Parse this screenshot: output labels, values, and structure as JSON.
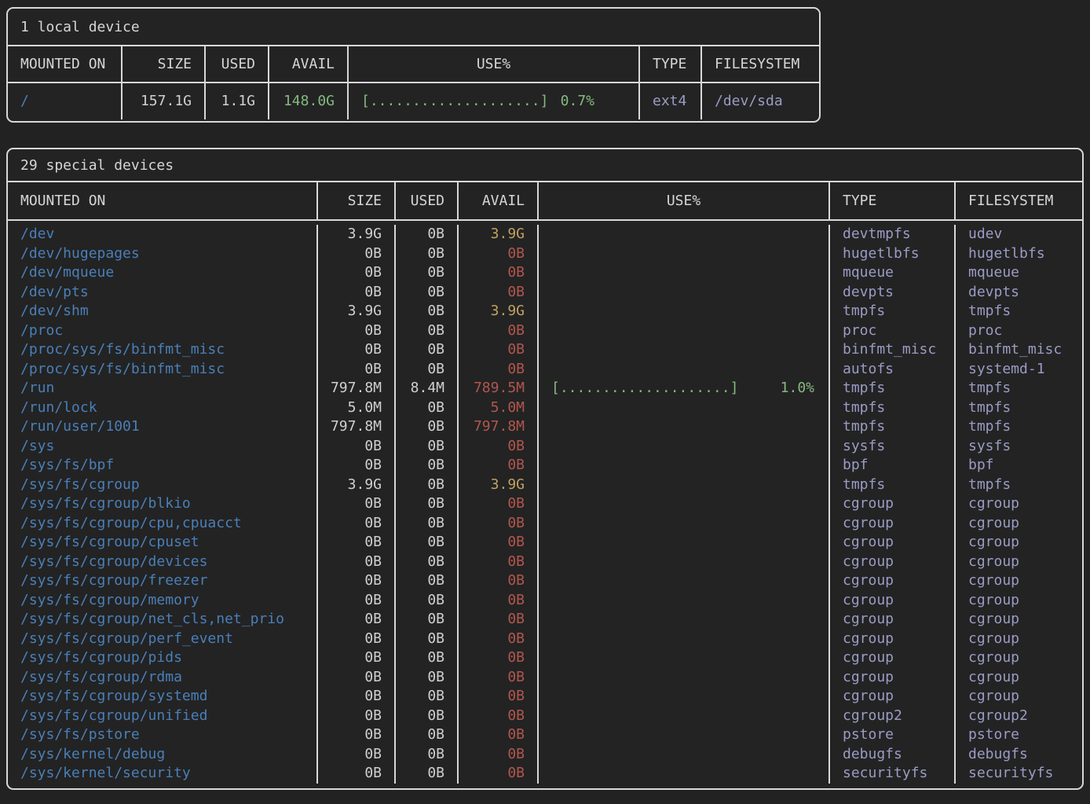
{
  "colors": {
    "background": "#222222",
    "border": "#d8d8d8",
    "mount_blue": "#4a7fb8",
    "value_white": "#d0d0d0",
    "avail_green": "#85b97f",
    "avail_yellow": "#c2a163",
    "avail_red": "#b2564e",
    "usage_green": "#85b97f",
    "fs_lavender": "#9b9bc5"
  },
  "local": {
    "title": "1 local device",
    "columns": [
      "MOUNTED ON",
      "SIZE",
      "USED",
      "AVAIL",
      "USE%",
      "TYPE",
      "FILESYSTEM"
    ],
    "rows": [
      {
        "mounted_on": "/",
        "size": "157.1G",
        "used": "1.1G",
        "avail": "148.0G",
        "avail_level": "green",
        "use_bar": "[....................]",
        "use_pct": "0.7%",
        "type": "ext4",
        "filesystem": "/dev/sda"
      }
    ]
  },
  "special": {
    "title": "29 special devices",
    "columns": [
      "MOUNTED ON",
      "SIZE",
      "USED",
      "AVAIL",
      "USE%",
      "TYPE",
      "FILESYSTEM"
    ],
    "rows": [
      {
        "mounted_on": "/dev",
        "size": "3.9G",
        "used": "0B",
        "avail": "3.9G",
        "avail_level": "yellow",
        "use_bar": null,
        "use_pct": null,
        "type": "devtmpfs",
        "filesystem": "udev"
      },
      {
        "mounted_on": "/dev/hugepages",
        "size": "0B",
        "used": "0B",
        "avail": "0B",
        "avail_level": "red",
        "use_bar": null,
        "use_pct": null,
        "type": "hugetlbfs",
        "filesystem": "hugetlbfs"
      },
      {
        "mounted_on": "/dev/mqueue",
        "size": "0B",
        "used": "0B",
        "avail": "0B",
        "avail_level": "red",
        "use_bar": null,
        "use_pct": null,
        "type": "mqueue",
        "filesystem": "mqueue"
      },
      {
        "mounted_on": "/dev/pts",
        "size": "0B",
        "used": "0B",
        "avail": "0B",
        "avail_level": "red",
        "use_bar": null,
        "use_pct": null,
        "type": "devpts",
        "filesystem": "devpts"
      },
      {
        "mounted_on": "/dev/shm",
        "size": "3.9G",
        "used": "0B",
        "avail": "3.9G",
        "avail_level": "yellow",
        "use_bar": null,
        "use_pct": null,
        "type": "tmpfs",
        "filesystem": "tmpfs"
      },
      {
        "mounted_on": "/proc",
        "size": "0B",
        "used": "0B",
        "avail": "0B",
        "avail_level": "red",
        "use_bar": null,
        "use_pct": null,
        "type": "proc",
        "filesystem": "proc"
      },
      {
        "mounted_on": "/proc/sys/fs/binfmt_misc",
        "size": "0B",
        "used": "0B",
        "avail": "0B",
        "avail_level": "red",
        "use_bar": null,
        "use_pct": null,
        "type": "binfmt_misc",
        "filesystem": "binfmt_misc"
      },
      {
        "mounted_on": "/proc/sys/fs/binfmt_misc",
        "size": "0B",
        "used": "0B",
        "avail": "0B",
        "avail_level": "red",
        "use_bar": null,
        "use_pct": null,
        "type": "autofs",
        "filesystem": "systemd-1"
      },
      {
        "mounted_on": "/run",
        "size": "797.8M",
        "used": "8.4M",
        "avail": "789.5M",
        "avail_level": "red",
        "use_bar": "[....................]",
        "use_pct": "1.0%",
        "type": "tmpfs",
        "filesystem": "tmpfs"
      },
      {
        "mounted_on": "/run/lock",
        "size": "5.0M",
        "used": "0B",
        "avail": "5.0M",
        "avail_level": "red",
        "use_bar": null,
        "use_pct": null,
        "type": "tmpfs",
        "filesystem": "tmpfs"
      },
      {
        "mounted_on": "/run/user/1001",
        "size": "797.8M",
        "used": "0B",
        "avail": "797.8M",
        "avail_level": "red",
        "use_bar": null,
        "use_pct": null,
        "type": "tmpfs",
        "filesystem": "tmpfs"
      },
      {
        "mounted_on": "/sys",
        "size": "0B",
        "used": "0B",
        "avail": "0B",
        "avail_level": "red",
        "use_bar": null,
        "use_pct": null,
        "type": "sysfs",
        "filesystem": "sysfs"
      },
      {
        "mounted_on": "/sys/fs/bpf",
        "size": "0B",
        "used": "0B",
        "avail": "0B",
        "avail_level": "red",
        "use_bar": null,
        "use_pct": null,
        "type": "bpf",
        "filesystem": "bpf"
      },
      {
        "mounted_on": "/sys/fs/cgroup",
        "size": "3.9G",
        "used": "0B",
        "avail": "3.9G",
        "avail_level": "yellow",
        "use_bar": null,
        "use_pct": null,
        "type": "tmpfs",
        "filesystem": "tmpfs"
      },
      {
        "mounted_on": "/sys/fs/cgroup/blkio",
        "size": "0B",
        "used": "0B",
        "avail": "0B",
        "avail_level": "red",
        "use_bar": null,
        "use_pct": null,
        "type": "cgroup",
        "filesystem": "cgroup"
      },
      {
        "mounted_on": "/sys/fs/cgroup/cpu,cpuacct",
        "size": "0B",
        "used": "0B",
        "avail": "0B",
        "avail_level": "red",
        "use_bar": null,
        "use_pct": null,
        "type": "cgroup",
        "filesystem": "cgroup"
      },
      {
        "mounted_on": "/sys/fs/cgroup/cpuset",
        "size": "0B",
        "used": "0B",
        "avail": "0B",
        "avail_level": "red",
        "use_bar": null,
        "use_pct": null,
        "type": "cgroup",
        "filesystem": "cgroup"
      },
      {
        "mounted_on": "/sys/fs/cgroup/devices",
        "size": "0B",
        "used": "0B",
        "avail": "0B",
        "avail_level": "red",
        "use_bar": null,
        "use_pct": null,
        "type": "cgroup",
        "filesystem": "cgroup"
      },
      {
        "mounted_on": "/sys/fs/cgroup/freezer",
        "size": "0B",
        "used": "0B",
        "avail": "0B",
        "avail_level": "red",
        "use_bar": null,
        "use_pct": null,
        "type": "cgroup",
        "filesystem": "cgroup"
      },
      {
        "mounted_on": "/sys/fs/cgroup/memory",
        "size": "0B",
        "used": "0B",
        "avail": "0B",
        "avail_level": "red",
        "use_bar": null,
        "use_pct": null,
        "type": "cgroup",
        "filesystem": "cgroup"
      },
      {
        "mounted_on": "/sys/fs/cgroup/net_cls,net_prio",
        "size": "0B",
        "used": "0B",
        "avail": "0B",
        "avail_level": "red",
        "use_bar": null,
        "use_pct": null,
        "type": "cgroup",
        "filesystem": "cgroup"
      },
      {
        "mounted_on": "/sys/fs/cgroup/perf_event",
        "size": "0B",
        "used": "0B",
        "avail": "0B",
        "avail_level": "red",
        "use_bar": null,
        "use_pct": null,
        "type": "cgroup",
        "filesystem": "cgroup"
      },
      {
        "mounted_on": "/sys/fs/cgroup/pids",
        "size": "0B",
        "used": "0B",
        "avail": "0B",
        "avail_level": "red",
        "use_bar": null,
        "use_pct": null,
        "type": "cgroup",
        "filesystem": "cgroup"
      },
      {
        "mounted_on": "/sys/fs/cgroup/rdma",
        "size": "0B",
        "used": "0B",
        "avail": "0B",
        "avail_level": "red",
        "use_bar": null,
        "use_pct": null,
        "type": "cgroup",
        "filesystem": "cgroup"
      },
      {
        "mounted_on": "/sys/fs/cgroup/systemd",
        "size": "0B",
        "used": "0B",
        "avail": "0B",
        "avail_level": "red",
        "use_bar": null,
        "use_pct": null,
        "type": "cgroup",
        "filesystem": "cgroup"
      },
      {
        "mounted_on": "/sys/fs/cgroup/unified",
        "size": "0B",
        "used": "0B",
        "avail": "0B",
        "avail_level": "red",
        "use_bar": null,
        "use_pct": null,
        "type": "cgroup2",
        "filesystem": "cgroup2"
      },
      {
        "mounted_on": "/sys/fs/pstore",
        "size": "0B",
        "used": "0B",
        "avail": "0B",
        "avail_level": "red",
        "use_bar": null,
        "use_pct": null,
        "type": "pstore",
        "filesystem": "pstore"
      },
      {
        "mounted_on": "/sys/kernel/debug",
        "size": "0B",
        "used": "0B",
        "avail": "0B",
        "avail_level": "red",
        "use_bar": null,
        "use_pct": null,
        "type": "debugfs",
        "filesystem": "debugfs"
      },
      {
        "mounted_on": "/sys/kernel/security",
        "size": "0B",
        "used": "0B",
        "avail": "0B",
        "avail_level": "red",
        "use_bar": null,
        "use_pct": null,
        "type": "securityfs",
        "filesystem": "securityfs"
      }
    ]
  }
}
